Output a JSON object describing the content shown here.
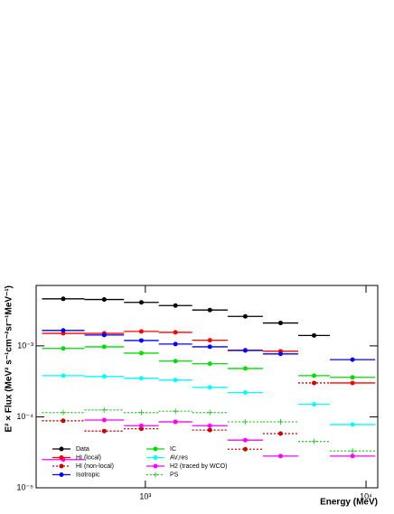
{
  "chart_data": {
    "type": "binned-scatter",
    "x_label": "Energy (MeV)",
    "y_label": "E² × Flux (MeV² s⁻¹cm⁻²sr⁻¹MeV⁻¹)",
    "bins": [
      340,
      530,
      800,
      1150,
      1630,
      2360,
      3410,
      4930,
      6860,
      11000
    ],
    "xlim": [
      320,
      11300
    ],
    "ylim": [
      1e-05,
      0.0071
    ],
    "xscale": "log",
    "yscale": "log",
    "xticks": [
      {
        "value": 1000,
        "label": "10³"
      },
      {
        "value": 10000,
        "label": "10⁴"
      }
    ],
    "yticks": [
      {
        "value": 1e-05,
        "label": "10⁻⁵"
      },
      {
        "value": 0.0001,
        "label": "10⁻⁴"
      },
      {
        "value": 0.001,
        "label": "10⁻³"
      }
    ],
    "legend": "lower left",
    "series": [
      {
        "name": "Data",
        "color": "#000000",
        "dash": false,
        "marker": "circle",
        "values": [
          0.0046,
          0.0045,
          0.0041,
          0.0037,
          0.0032,
          0.0026,
          0.0021,
          0.0014,
          null
        ]
      },
      {
        "name": "HI (local)",
        "color": "#ff0000",
        "dash": false,
        "marker": "circle",
        "values": [
          0.0015,
          0.0015,
          0.0016,
          0.00155,
          0.0012,
          0.00087,
          0.00084,
          null,
          0.0003
        ]
      },
      {
        "name": "HI (non-local)",
        "color": "#cc0000",
        "dash": true,
        "marker": "circle",
        "values": [
          8.8e-05,
          6.3e-05,
          6.8e-05,
          8.5e-05,
          6.5e-05,
          3.5e-05,
          5.8e-05,
          0.0003,
          null
        ]
      },
      {
        "name": "Isotropic",
        "color": "#0000ff",
        "dash": false,
        "marker": "circle",
        "values": [
          0.00165,
          0.00142,
          0.00119,
          0.00106,
          0.00097,
          0.00086,
          0.00077,
          null,
          0.00064
        ]
      },
      {
        "name": "IC",
        "color": "#00dd00",
        "dash": false,
        "marker": "circle",
        "values": [
          0.00092,
          0.00097,
          0.00079,
          0.00061,
          0.00056,
          0.00048,
          null,
          0.00038,
          0.00036
        ]
      },
      {
        "name": "AV,res",
        "color": "#00ffff",
        "dash": false,
        "marker": "circle",
        "values": [
          0.00038,
          0.00037,
          0.00035,
          0.00033,
          0.00026,
          0.00022,
          null,
          0.00015,
          7.8e-05
        ]
      },
      {
        "name": "H2 (traced by WCO)",
        "color": "#ff00ff",
        "dash": false,
        "marker": "circle",
        "values": [
          2.5e-05,
          9e-05,
          7.5e-05,
          8.5e-05,
          7.5e-05,
          4.7e-05,
          2.8e-05,
          null,
          2.8e-05
        ]
      },
      {
        "name": "PS",
        "color": "#33cc33",
        "dash": true,
        "marker": "cross",
        "values": [
          0.000115,
          0.000125,
          0.000115,
          0.00012,
          0.000115,
          8.5e-05,
          8.5e-05,
          4.5e-05,
          3.3e-05
        ]
      }
    ]
  }
}
